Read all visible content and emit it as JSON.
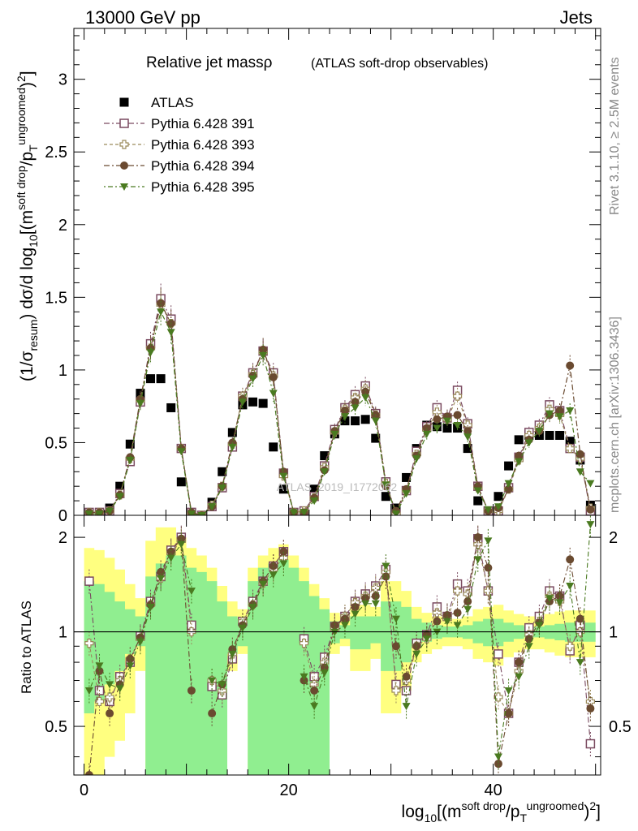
{
  "header": {
    "left": "13000 GeV pp",
    "right": "Jets"
  },
  "side_labels": {
    "rivet": "Rivet 3.1.10, ≥ 2.5M events",
    "mcplots": "mcplots.cern.ch [arXiv:1306.3436]"
  },
  "watermark": "ATLAS_2019_I1772062",
  "chart_data": [
    {
      "type": "scatter",
      "title": "Relative jet massρ",
      "subtitle": "(ATLAS soft-drop observables)",
      "ylabel": "(1/σresum) dσ/d log10[(msoft drop/pTungroomed)2]",
      "xlim": [
        -1,
        50.5
      ],
      "ylim": [
        0,
        3.35
      ],
      "yticks": [
        "0",
        "0.5",
        "1",
        "1.5",
        "2",
        "2.5",
        "3"
      ],
      "legend_position": "top-left",
      "x": [
        0.5,
        1.5,
        2.5,
        3.5,
        4.5,
        5.5,
        6.5,
        7.5,
        8.5,
        9.5,
        10.5,
        11.5,
        12.5,
        13.5,
        14.5,
        15.5,
        16.5,
        17.5,
        18.5,
        19.5,
        20.5,
        21.5,
        22.5,
        23.5,
        24.5,
        25.5,
        26.5,
        27.5,
        28.5,
        29.5,
        30.5,
        31.5,
        32.5,
        33.5,
        34.5,
        35.5,
        36.5,
        37.5,
        38.5,
        39.5,
        40.5,
        41.5,
        42.5,
        43.5,
        44.5,
        45.5,
        46.5,
        47.5,
        48.5,
        49.5
      ],
      "series": [
        {
          "name": "ATLAS",
          "color": "#000000",
          "marker": "square-filled",
          "values": [
            0.01,
            0.02,
            0.05,
            0.2,
            0.49,
            0.84,
            0.94,
            0.94,
            0.74,
            0.23,
            0.02,
            0.0,
            0.09,
            0.3,
            0.57,
            0.76,
            0.78,
            0.77,
            0.47,
            0.18,
            0.0,
            0.03,
            0.18,
            0.41,
            0.56,
            0.65,
            0.65,
            0.66,
            0.53,
            0.13,
            0.05,
            0.26,
            0.46,
            0.62,
            0.61,
            0.6,
            0.6,
            0.46,
            0.1,
            0.02,
            0.13,
            0.34,
            0.52,
            0.55,
            0.55,
            0.55,
            0.55,
            0.51,
            0.38,
            0.07
          ]
        },
        {
          "name": "Pythia 6.428 391",
          "color": "#7a4a60",
          "marker": "square-open",
          "values": [
            0.02,
            0.02,
            0.03,
            0.15,
            0.37,
            0.78,
            1.18,
            1.49,
            1.35,
            0.46,
            0.02,
            0.0,
            0.06,
            0.19,
            0.47,
            0.82,
            0.98,
            1.13,
            0.98,
            0.29,
            0.02,
            0.03,
            0.13,
            0.34,
            0.59,
            0.74,
            0.83,
            0.89,
            0.7,
            0.23,
            0.01,
            0.17,
            0.44,
            0.61,
            0.74,
            0.67,
            0.86,
            0.63,
            0.2,
            0.03,
            0.03,
            0.19,
            0.4,
            0.57,
            0.62,
            0.76,
            0.72,
            0.46,
            0.4,
            0.03
          ]
        },
        {
          "name": "Pythia 6.428 393",
          "color": "#9a8a5a",
          "marker": "cross-open",
          "values": [
            0.02,
            0.02,
            0.03,
            0.14,
            0.39,
            0.79,
            1.15,
            1.45,
            1.32,
            0.46,
            0.01,
            0.0,
            0.07,
            0.2,
            0.49,
            0.82,
            0.97,
            1.12,
            0.96,
            0.27,
            0.02,
            0.03,
            0.12,
            0.33,
            0.57,
            0.73,
            0.81,
            0.87,
            0.69,
            0.22,
            0.01,
            0.17,
            0.42,
            0.59,
            0.71,
            0.66,
            0.82,
            0.62,
            0.19,
            0.03,
            0.03,
            0.18,
            0.38,
            0.55,
            0.6,
            0.73,
            0.69,
            0.46,
            0.39,
            0.05
          ]
        },
        {
          "name": "Pythia 6.428 394",
          "color": "#6a4a30",
          "marker": "circle-filled",
          "values": [
            0.02,
            0.02,
            0.03,
            0.14,
            0.4,
            0.8,
            1.15,
            1.46,
            1.32,
            0.46,
            0.02,
            0.0,
            0.06,
            0.2,
            0.5,
            0.8,
            0.96,
            1.14,
            0.95,
            0.3,
            0.02,
            0.02,
            0.12,
            0.31,
            0.58,
            0.72,
            0.78,
            0.85,
            0.69,
            0.2,
            0.03,
            0.18,
            0.41,
            0.6,
            0.66,
            0.68,
            0.69,
            0.58,
            0.2,
            0.03,
            0.05,
            0.18,
            0.41,
            0.52,
            0.58,
            0.69,
            0.72,
            1.03,
            0.42,
            0.04
          ]
        },
        {
          "name": "Pythia 6.428 395",
          "color": "#4a7a20",
          "marker": "triangle-down-filled",
          "values": [
            0.01,
            0.01,
            0.03,
            0.13,
            0.38,
            0.77,
            1.12,
            1.4,
            1.26,
            0.44,
            0.01,
            0.0,
            0.06,
            0.19,
            0.47,
            0.78,
            0.94,
            1.1,
            0.84,
            0.27,
            0.02,
            0.02,
            0.1,
            0.3,
            0.56,
            0.68,
            0.74,
            0.81,
            0.65,
            0.21,
            0.01,
            0.15,
            0.39,
            0.56,
            0.6,
            0.65,
            0.62,
            0.54,
            0.17,
            0.04,
            0.06,
            0.22,
            0.37,
            0.5,
            0.58,
            0.7,
            0.68,
            0.72,
            0.3,
            0.22
          ]
        }
      ]
    },
    {
      "type": "scatter",
      "title": "",
      "ylabel": "Ratio to ATLAS",
      "xlabel": "log10[(msoft drop/pTungroomed)2]",
      "xlim": [
        -1,
        50.5
      ],
      "ylim": [
        0.35,
        2.35
      ],
      "xticks": [
        "0",
        "20",
        "40"
      ],
      "yticks": [
        "0.5",
        "1",
        "2"
      ],
      "reference_line": 1,
      "band_inner_color": "#90ee90",
      "band_outer_color": "#ffff80",
      "bands": {
        "inner_lo": [
          0.55,
          0.6,
          0.68,
          0.75,
          0.85,
          0.9,
          0.35,
          0.35,
          0.35,
          0.35,
          0.35,
          0.35,
          0.35,
          0.35,
          0.85,
          0.9,
          0.35,
          0.35,
          0.35,
          0.35,
          0.35,
          0.35,
          0.35,
          0.35,
          0.92,
          0.95,
          0.88,
          0.88,
          0.92,
          0.75,
          0.75,
          0.8,
          0.9,
          0.93,
          0.95,
          0.96,
          0.96,
          0.95,
          0.92,
          0.9,
          0.9,
          0.93,
          0.95,
          0.96,
          0.96,
          0.95,
          0.94,
          0.93,
          0.93,
          0.93
        ],
        "inner_hi": [
          1.45,
          1.42,
          1.34,
          1.25,
          1.18,
          1.12,
          1.5,
          1.65,
          1.75,
          1.75,
          1.6,
          1.55,
          1.45,
          1.25,
          1.12,
          1.1,
          1.45,
          1.6,
          1.65,
          1.7,
          1.6,
          1.45,
          1.3,
          1.18,
          1.08,
          1.05,
          1.12,
          1.12,
          1.12,
          1.25,
          1.25,
          1.2,
          1.1,
          1.07,
          1.05,
          1.04,
          1.04,
          1.05,
          1.08,
          1.1,
          1.1,
          1.07,
          1.05,
          1.04,
          1.04,
          1.05,
          1.06,
          1.07,
          1.07,
          1.07
        ],
        "outer_lo": [
          0.35,
          0.35,
          0.4,
          0.45,
          0.55,
          0.75,
          0.35,
          0.35,
          0.35,
          0.35,
          0.35,
          0.35,
          0.35,
          0.35,
          0.75,
          0.85,
          0.35,
          0.35,
          0.35,
          0.35,
          0.35,
          0.35,
          0.35,
          0.35,
          0.85,
          0.9,
          0.75,
          0.75,
          0.82,
          0.55,
          0.55,
          0.65,
          0.8,
          0.85,
          0.88,
          0.9,
          0.9,
          0.88,
          0.82,
          0.8,
          0.78,
          0.83,
          0.86,
          0.88,
          0.88,
          0.86,
          0.84,
          0.83,
          0.83,
          0.83
        ],
        "outer_hi": [
          1.85,
          1.82,
          1.72,
          1.58,
          1.42,
          1.28,
          1.95,
          2.15,
          2.15,
          2.0,
          1.85,
          1.75,
          1.6,
          1.4,
          1.25,
          1.18,
          1.6,
          1.75,
          1.85,
          1.9,
          1.75,
          1.6,
          1.42,
          1.28,
          1.15,
          1.12,
          1.22,
          1.22,
          1.2,
          1.45,
          1.45,
          1.35,
          1.2,
          1.15,
          1.12,
          1.1,
          1.1,
          1.12,
          1.18,
          1.2,
          1.22,
          1.17,
          1.14,
          1.12,
          1.12,
          1.14,
          1.16,
          1.17,
          1.17,
          1.17
        ]
      },
      "series": [
        {
          "name": "Pythia 6.428 391",
          "values": [
            1.45,
            0.65,
            0.6,
            0.72,
            0.8,
            0.97,
            1.25,
            1.5,
            1.82,
            2.0,
            1.05,
            null,
            0.67,
            0.63,
            0.82,
            1.08,
            1.25,
            1.45,
            1.62,
            1.8,
            null,
            0.95,
            0.72,
            0.83,
            1.04,
            1.12,
            1.25,
            1.32,
            1.4,
            1.58,
            0.68,
            0.65,
            0.92,
            0.98,
            1.2,
            1.12,
            1.42,
            1.35,
            1.98,
            1.35,
            0.85,
            0.55,
            0.8,
            1.03,
            1.12,
            1.35,
            1.3,
            0.87,
            1.05,
            0.44
          ]
        },
        {
          "name": "Pythia 6.428 393",
          "values": [
            0.92,
            0.6,
            0.62,
            0.7,
            0.82,
            0.95,
            1.22,
            1.48,
            1.78,
            1.95,
            1.0,
            null,
            0.7,
            0.65,
            0.85,
            1.08,
            1.22,
            1.43,
            1.58,
            1.72,
            null,
            0.92,
            0.68,
            0.8,
            1.02,
            1.12,
            1.24,
            1.3,
            1.38,
            1.55,
            0.65,
            0.7,
            0.9,
            0.95,
            1.15,
            1.1,
            1.35,
            1.32,
            1.9,
            1.35,
            0.62,
            0.55,
            0.75,
            0.98,
            1.08,
            1.3,
            1.25,
            0.9,
            1.0,
            0.6
          ]
        },
        {
          "name": "Pythia 6.428 394",
          "values": [
            0.35,
            0.75,
            0.55,
            0.68,
            0.82,
            0.96,
            1.22,
            1.55,
            1.8,
            1.98,
            0.65,
            null,
            0.55,
            0.68,
            0.88,
            1.05,
            1.22,
            1.45,
            1.62,
            1.8,
            null,
            0.7,
            0.65,
            0.77,
            1.05,
            1.1,
            1.2,
            1.28,
            1.3,
            1.5,
            0.9,
            0.72,
            0.9,
            0.98,
            1.08,
            1.13,
            1.15,
            1.25,
            2.0,
            1.6,
            0.38,
            0.55,
            0.8,
            0.95,
            1.07,
            1.25,
            1.3,
            1.7,
            1.1,
            0.57
          ]
        },
        {
          "name": "Pythia 6.428 395",
          "values": [
            0.65,
            0.78,
            0.68,
            0.66,
            0.78,
            0.93,
            1.2,
            1.48,
            1.72,
            1.9,
            1.35,
            null,
            0.7,
            0.68,
            0.85,
            1.03,
            1.2,
            1.42,
            1.52,
            1.65,
            null,
            0.72,
            0.58,
            0.74,
            1.0,
            1.05,
            1.14,
            1.23,
            1.23,
            1.62,
            1.1,
            0.58,
            0.85,
            0.95,
            1.0,
            1.08,
            1.05,
            1.18,
            1.7,
            1.95,
            0.4,
            0.65,
            0.72,
            0.9,
            1.05,
            1.28,
            1.24,
            1.4,
            0.8,
            2.2
          ]
        }
      ]
    }
  ]
}
